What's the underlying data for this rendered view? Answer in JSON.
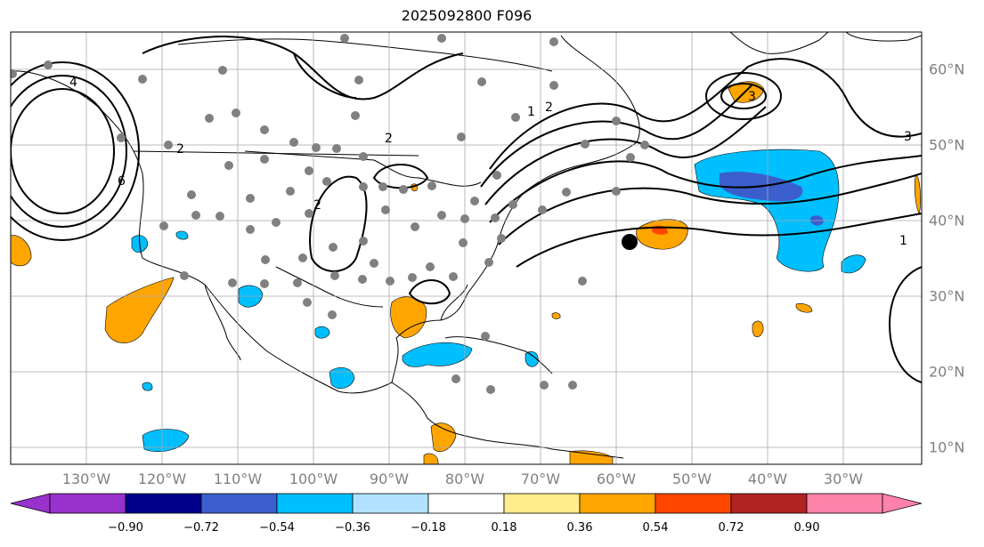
{
  "title": "2025092800 F096",
  "lon_labels": [
    "130°W",
    "120°W",
    "110°W",
    "100°W",
    "90°W",
    "80°W",
    "70°W",
    "60°W",
    "50°W",
    "40°W",
    "30°W"
  ],
  "lat_labels": [
    "60°N",
    "50°N",
    "40°N",
    "30°N",
    "20°N",
    "10°N"
  ],
  "contour_labels": [
    "1",
    "2",
    "3",
    "4",
    "6"
  ],
  "colorbar": {
    "ticks": [
      "−0.90",
      "−0.72",
      "−0.54",
      "−0.36",
      "−0.18",
      "0.18",
      "0.36",
      "0.54",
      "0.72",
      "0.90"
    ],
    "colors": [
      "#9932cc",
      "#00008b",
      "#3a5fcd",
      "#00bfff",
      "#b0e2ff",
      "#ffffff",
      "#ffec8b",
      "#ffa500",
      "#ff4500",
      "#b22222",
      "#ff82ab"
    ]
  },
  "colors": {
    "ocean": "#ffffff",
    "coast": "#000000",
    "grid": "#a9a9a9",
    "stations": "#808080",
    "marker": "#000000"
  }
}
